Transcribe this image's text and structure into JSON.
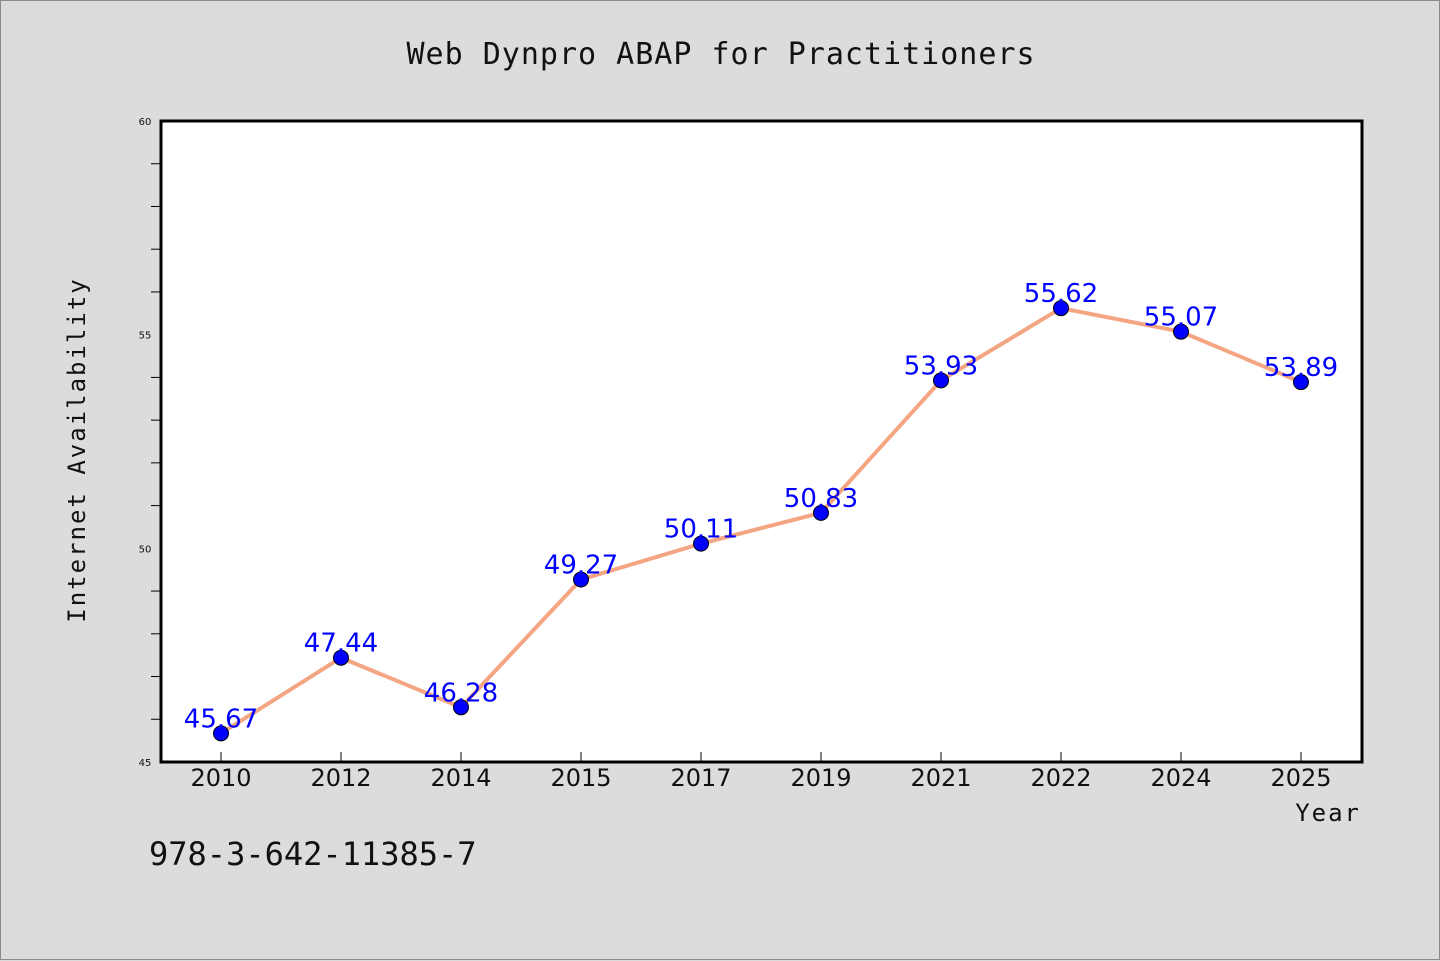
{
  "chart_data": {
    "type": "line",
    "title": "Web Dynpro ABAP for Practitioners",
    "xlabel": "Year",
    "ylabel": "Internet Availability",
    "categories": [
      "2010",
      "2012",
      "2014",
      "2015",
      "2017",
      "2019",
      "2021",
      "2022",
      "2024",
      "2025"
    ],
    "series": [
      {
        "values": [
          45.67,
          47.44,
          46.28,
          49.27,
          50.11,
          50.83,
          53.93,
          55.62,
          55.07,
          53.89
        ]
      }
    ],
    "data_labels": [
      "45.67",
      "47.44",
      "46.28",
      "49.27",
      "50.11",
      "50.83",
      "53.93",
      "55.62",
      "55.07",
      "53.89"
    ],
    "ylim": [
      45,
      60
    ],
    "yticks": [
      "45",
      "50",
      "55",
      "60"
    ],
    "grid": false,
    "colors": {
      "line": "#f4a582",
      "marker": "#0000ff",
      "labels": "#0000ff",
      "background": "#dcdcdc",
      "plot": "#ffffff"
    }
  },
  "footer": {
    "isbn": "978-3-642-11385-7"
  }
}
